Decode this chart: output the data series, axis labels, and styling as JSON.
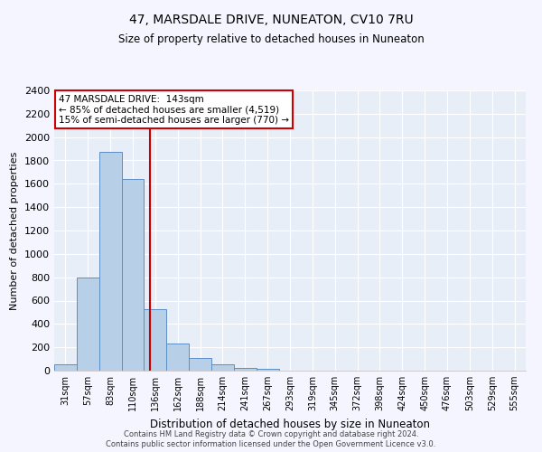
{
  "title": "47, MARSDALE DRIVE, NUNEATON, CV10 7RU",
  "subtitle": "Size of property relative to detached houses in Nuneaton",
  "xlabel": "Distribution of detached houses by size in Nuneaton",
  "ylabel": "Number of detached properties",
  "bin_labels": [
    "31sqm",
    "57sqm",
    "83sqm",
    "110sqm",
    "136sqm",
    "162sqm",
    "188sqm",
    "214sqm",
    "241sqm",
    "267sqm",
    "293sqm",
    "319sqm",
    "345sqm",
    "372sqm",
    "398sqm",
    "424sqm",
    "450sqm",
    "476sqm",
    "503sqm",
    "529sqm",
    "555sqm"
  ],
  "bar_heights": [
    55,
    800,
    1870,
    1640,
    530,
    235,
    110,
    55,
    25,
    15,
    0,
    0,
    0,
    0,
    0,
    0,
    0,
    0,
    0,
    0,
    0
  ],
  "bar_color": "#b8cfe8",
  "bar_edge_color": "#5b8ec4",
  "bg_color": "#e8eef8",
  "grid_color": "#ffffff",
  "vline_color": "#cc0000",
  "annotation_text": "47 MARSDALE DRIVE:  143sqm\n← 85% of detached houses are smaller (4,519)\n15% of semi-detached houses are larger (770) →",
  "annotation_box_color": "#ffffff",
  "annotation_box_edge": "#cc0000",
  "footnote1": "Contains HM Land Registry data © Crown copyright and database right 2024.",
  "footnote2": "Contains public sector information licensed under the Open Government Licence v3.0.",
  "ylim": [
    0,
    2400
  ],
  "yticks": [
    0,
    200,
    400,
    600,
    800,
    1000,
    1200,
    1400,
    1600,
    1800,
    2000,
    2200,
    2400
  ],
  "fig_bg": "#f5f5ff"
}
